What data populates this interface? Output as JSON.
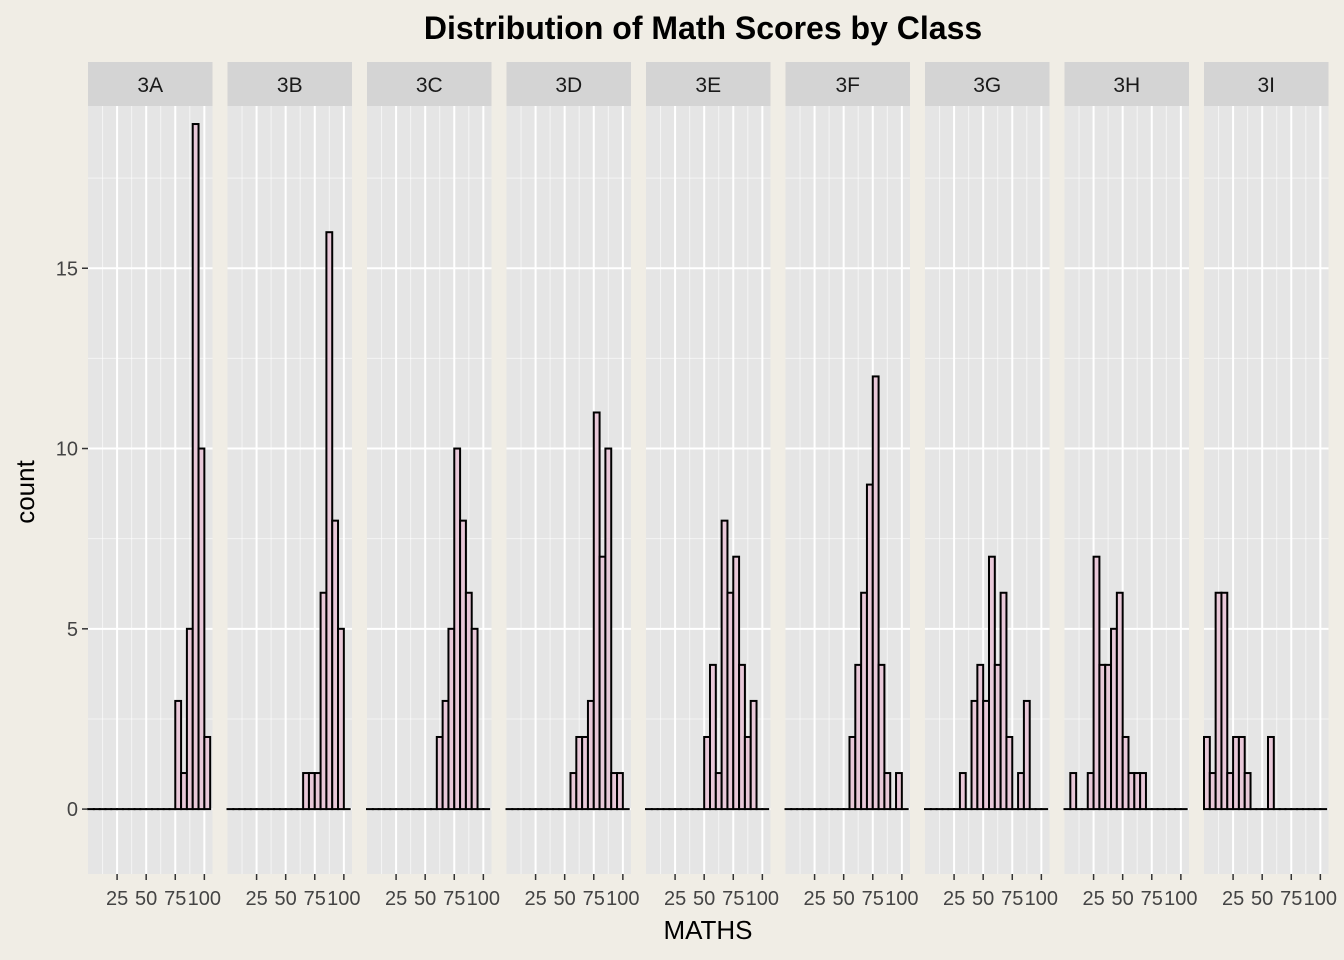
{
  "chart_data": {
    "type": "bar",
    "title": "Distribution of Math Scores by Class",
    "xlabel": "MATHS",
    "ylabel": "count",
    "xlim": [
      0,
      107
    ],
    "ylim": [
      -1.8,
      19.5
    ],
    "x_ticks": [
      25,
      50,
      75,
      100
    ],
    "y_ticks": [
      0,
      5,
      10,
      15
    ],
    "bin_width": 5,
    "bin_start": 0,
    "grid": true,
    "colors": {
      "bar_fill": "#e8c8d8",
      "bar_stroke": "#000000",
      "panel_bg": "#e5e5e5",
      "strip_bg": "#d4d4d4",
      "grid": "#ffffff",
      "page_bg": "#f0ede5"
    },
    "panels": [
      {
        "name": "3A",
        "counts": [
          0,
          0,
          0,
          0,
          0,
          0,
          0,
          0,
          0,
          0,
          0,
          0,
          0,
          0,
          0,
          3,
          1,
          5,
          19,
          10,
          2
        ]
      },
      {
        "name": "3B",
        "counts": [
          0,
          0,
          0,
          0,
          0,
          0,
          0,
          0,
          0,
          0,
          0,
          0,
          0,
          1,
          1,
          1,
          6,
          16,
          8,
          5,
          0
        ]
      },
      {
        "name": "3C",
        "counts": [
          0,
          0,
          0,
          0,
          0,
          0,
          0,
          0,
          0,
          0,
          0,
          0,
          2,
          3,
          5,
          10,
          8,
          6,
          5,
          0,
          0
        ]
      },
      {
        "name": "3D",
        "counts": [
          0,
          0,
          0,
          0,
          0,
          0,
          0,
          0,
          0,
          0,
          0,
          1,
          2,
          2,
          3,
          11,
          7,
          10,
          1,
          1,
          0
        ]
      },
      {
        "name": "3E",
        "counts": [
          0,
          0,
          0,
          0,
          0,
          0,
          0,
          0,
          0,
          0,
          2,
          4,
          1,
          8,
          6,
          7,
          4,
          2,
          3,
          0,
          0
        ]
      },
      {
        "name": "3F",
        "counts": [
          0,
          0,
          0,
          0,
          0,
          0,
          0,
          0,
          0,
          0,
          0,
          2,
          4,
          6,
          9,
          12,
          4,
          1,
          0,
          1,
          0
        ]
      },
      {
        "name": "3G",
        "counts": [
          0,
          0,
          0,
          0,
          0,
          0,
          1,
          0,
          3,
          4,
          3,
          7,
          4,
          6,
          2,
          0,
          1,
          3,
          0,
          0,
          0
        ]
      },
      {
        "name": "3H",
        "counts": [
          0,
          1,
          0,
          0,
          1,
          7,
          4,
          4,
          5,
          6,
          2,
          1,
          1,
          1,
          0,
          0,
          0,
          0,
          0,
          0,
          0
        ]
      },
      {
        "name": "3I",
        "counts": [
          2,
          1,
          6,
          6,
          1,
          2,
          2,
          1,
          0,
          0,
          0,
          2,
          0,
          0,
          0,
          0,
          0,
          0,
          0,
          0,
          0
        ]
      }
    ]
  }
}
